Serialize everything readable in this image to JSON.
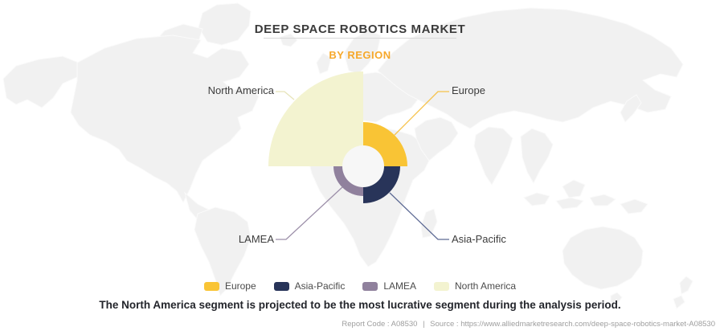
{
  "header": {
    "title": "DEEP SPACE ROBOTICS MARKET",
    "subtitle": "BY REGION",
    "subtitle_accent_color": "#F6A82B"
  },
  "chart_data": {
    "type": "pie",
    "variant": "variable-radius quarter-donut over world map",
    "title": "DEEP SPACE ROBOTICS MARKET",
    "subtitle": "BY REGION",
    "encoding": "each region occupies a 90-degree quarter; relative market size is encoded by wedge radius (no numeric values labeled)",
    "inner_radius_px": 26,
    "segments": [
      {
        "name": "Europe",
        "color": "#F9C435",
        "leader_color": "#F6C24A",
        "outer_radius_px": 55,
        "angle_start_deg": 0,
        "angle_end_deg": 90
      },
      {
        "name": "Asia-Pacific",
        "color": "#283459",
        "leader_color": "#5D6A94",
        "outer_radius_px": 46,
        "angle_start_deg": 90,
        "angle_end_deg": 180
      },
      {
        "name": "LAMEA",
        "color": "#90819D",
        "leader_color": "#9C8FA9",
        "outer_radius_px": 37,
        "angle_start_deg": 180,
        "angle_end_deg": 270
      },
      {
        "name": "North America",
        "color": "#F3F3D0",
        "leader_color": "#E7E4B9",
        "outer_radius_px": 118,
        "angle_start_deg": 270,
        "angle_end_deg": 360
      }
    ],
    "legend": {
      "position": "bottom",
      "items": [
        "Europe",
        "Asia-Pacific",
        "LAMEA",
        "North America"
      ]
    },
    "annotation": "North America has the largest radius (most lucrative segment)"
  },
  "statement": "The North America segment is projected to be the most lucrative segment during the analysis period.",
  "footer": {
    "report_code": "Report Code : A08530",
    "separator": "|",
    "source": "Source : https://www.alliedmarketresearch.com/deep-space-robotics-market-A08530"
  }
}
